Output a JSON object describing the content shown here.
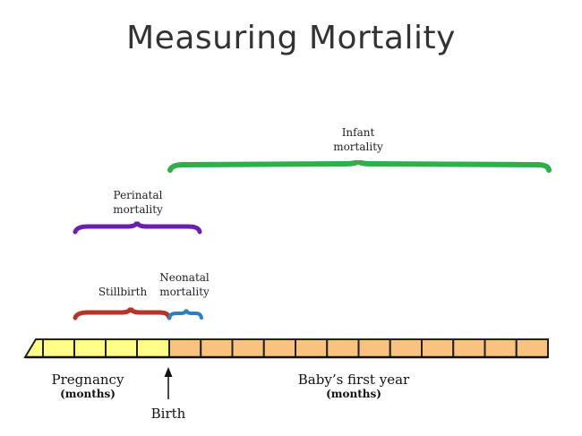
{
  "title": "Measuring Mortality",
  "brackets": {
    "infant": {
      "line1": "Infant",
      "line2": "mortality",
      "color": "#2db04a"
    },
    "perinatal": {
      "line1": "Perinatal",
      "line2": "mortality",
      "color": "#6a1fb0"
    },
    "stillbirth": {
      "label": "Stillbirth",
      "color": "#b5352a"
    },
    "neonatal": {
      "line1": "Neonatal",
      "line2": "mortality",
      "color": "#2e7fc0"
    }
  },
  "timeline": {
    "pregnancy_color": "#ffff88",
    "year_color": "#f9c27e",
    "pregnancy_label": "Pregnancy",
    "pregnancy_sub": "(months)",
    "year_label": "Baby’s first year",
    "year_sub": "(months)",
    "birth_label": "Birth"
  }
}
